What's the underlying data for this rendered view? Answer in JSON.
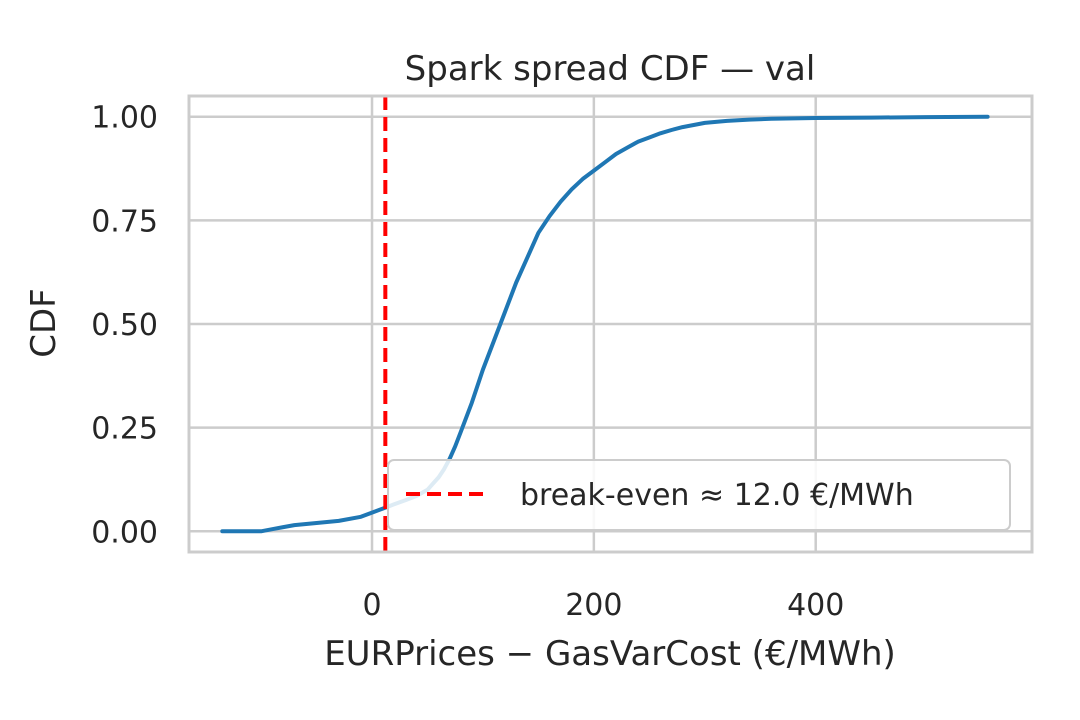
{
  "chart_data": {
    "type": "line",
    "title": "Spark spread CDF — val",
    "xlabel": "EURPrices − GasVarCost (€/MWh)",
    "ylabel": "CDF",
    "xlim": [
      -165,
      595
    ],
    "ylim": [
      -0.05,
      1.05
    ],
    "xticks": [
      0,
      200,
      400
    ],
    "xtick_labels": [
      "0",
      "200",
      "400"
    ],
    "yticks": [
      0.0,
      0.25,
      0.5,
      0.75,
      1.0
    ],
    "ytick_labels": [
      "0.00",
      "0.25",
      "0.50",
      "0.75",
      "1.00"
    ],
    "grid": true,
    "legend_position": "lower-right",
    "series": [
      {
        "color": "#1f77b4",
        "x": [
          -135,
          -100,
          -90,
          -80,
          -70,
          -50,
          -30,
          -10,
          0,
          10,
          20,
          30,
          40,
          50,
          55,
          60,
          65,
          70,
          75,
          80,
          90,
          100,
          110,
          120,
          130,
          140,
          150,
          160,
          170,
          180,
          190,
          200,
          210,
          220,
          230,
          240,
          250,
          260,
          270,
          280,
          290,
          300,
          320,
          340,
          360,
          400,
          450,
          500,
          555
        ],
        "y": [
          0.0,
          0.0,
          0.005,
          0.01,
          0.015,
          0.02,
          0.025,
          0.035,
          0.045,
          0.055,
          0.065,
          0.075,
          0.085,
          0.1,
          0.115,
          0.13,
          0.15,
          0.175,
          0.205,
          0.24,
          0.31,
          0.39,
          0.46,
          0.53,
          0.6,
          0.66,
          0.72,
          0.76,
          0.795,
          0.825,
          0.85,
          0.87,
          0.89,
          0.91,
          0.925,
          0.94,
          0.95,
          0.96,
          0.968,
          0.975,
          0.98,
          0.985,
          0.99,
          0.993,
          0.995,
          0.997,
          0.998,
          0.999,
          1.0
        ]
      }
    ],
    "reference_lines": [
      {
        "type": "vertical",
        "x": 12.0,
        "color": "#ff0000",
        "style": "dashed",
        "label": "break-even ≈ 12.0 €/MWh"
      }
    ]
  }
}
